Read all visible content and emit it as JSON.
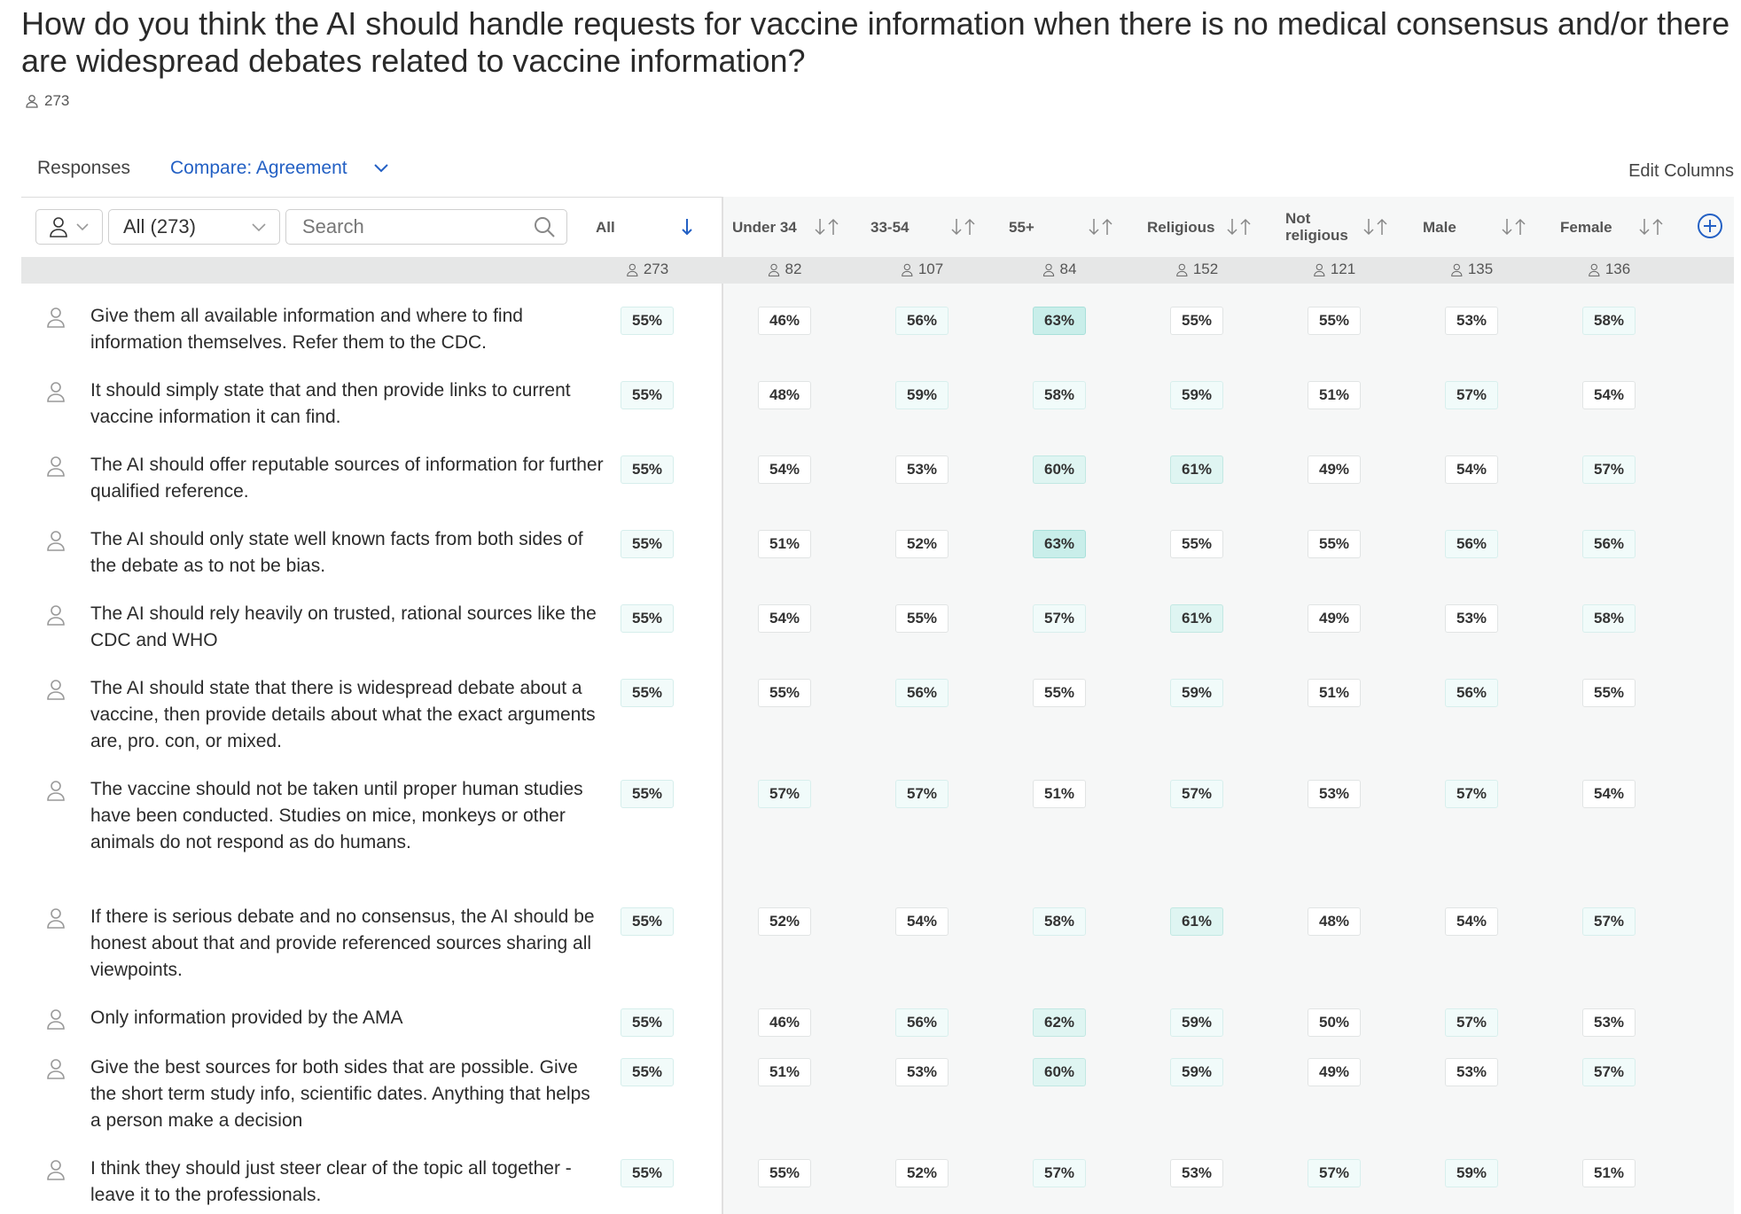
{
  "question": "How do you think the AI should handle requests for vaccine information when there is no medical consensus and/or there are widespread debates related to vaccine information?",
  "respondent_count": "273",
  "toolbar": {
    "responses_label": "Responses",
    "compare_label": "Compare: Agreement",
    "edit_columns_label": "Edit Columns"
  },
  "filters": {
    "audience_label": "All (273)",
    "search_placeholder": "Search"
  },
  "columns": [
    {
      "label": "All",
      "count": "273"
    },
    {
      "label": "Under 34",
      "count": "82"
    },
    {
      "label": "33-54",
      "count": "107"
    },
    {
      "label": "55+",
      "count": "84"
    },
    {
      "label": "Religious",
      "count": "152"
    },
    {
      "label": "Not religious",
      "count": "121"
    },
    {
      "label": "Male",
      "count": "135"
    },
    {
      "label": "Female",
      "count": "136"
    }
  ],
  "rows": [
    {
      "text": "Give them all available information and where to find information themselves. Refer them to the CDC.",
      "values": [
        "55%",
        "46%",
        "56%",
        "63%",
        "55%",
        "55%",
        "53%",
        "58%"
      ]
    },
    {
      "text": "It should simply state that and then provide links to current vaccine information it can find.",
      "values": [
        "55%",
        "48%",
        "59%",
        "58%",
        "59%",
        "51%",
        "57%",
        "54%"
      ]
    },
    {
      "text": "The AI should offer reputable sources of information for further qualified reference.",
      "values": [
        "55%",
        "54%",
        "53%",
        "60%",
        "61%",
        "49%",
        "54%",
        "57%"
      ]
    },
    {
      "text": "The AI should only state well known facts from both sides of the debate as to not be bias.",
      "values": [
        "55%",
        "51%",
        "52%",
        "63%",
        "55%",
        "55%",
        "56%",
        "56%"
      ]
    },
    {
      "text": "The AI should rely heavily on trusted, rational sources like the CDC and WHO",
      "values": [
        "55%",
        "54%",
        "55%",
        "57%",
        "61%",
        "49%",
        "53%",
        "58%"
      ]
    },
    {
      "text": "The AI should state that there is widespread debate about a vaccine, then provide details about what the exact arguments are, pro. con, or mixed.",
      "values": [
        "55%",
        "55%",
        "56%",
        "55%",
        "59%",
        "51%",
        "56%",
        "55%"
      ]
    },
    {
      "text": "The vaccine should not be taken until proper human studies have been conducted. Studies on mice, monkeys or other animals do not respond as do humans.",
      "values": [
        "55%",
        "57%",
        "57%",
        "51%",
        "57%",
        "53%",
        "57%",
        "54%"
      ]
    },
    {
      "text": "If there is serious debate and no consensus, the AI should be honest about that and provide referenced sources sharing all viewpoints.",
      "values": [
        "55%",
        "52%",
        "54%",
        "58%",
        "61%",
        "48%",
        "54%",
        "57%"
      ]
    },
    {
      "text": "Only information provided by the AMA",
      "values": [
        "55%",
        "46%",
        "56%",
        "62%",
        "59%",
        "50%",
        "57%",
        "53%"
      ]
    },
    {
      "text": "Give the best sources for both sides that are possible. Give the short term study info, scientific dates. Anything that helps a person make a decision",
      "values": [
        "55%",
        "51%",
        "53%",
        "60%",
        "59%",
        "49%",
        "53%",
        "57%"
      ]
    },
    {
      "text": "I think they should just steer clear of the topic all together - leave it to the professionals.",
      "values": [
        "55%",
        "55%",
        "52%",
        "57%",
        "53%",
        "57%",
        "59%",
        "51%"
      ]
    }
  ]
}
